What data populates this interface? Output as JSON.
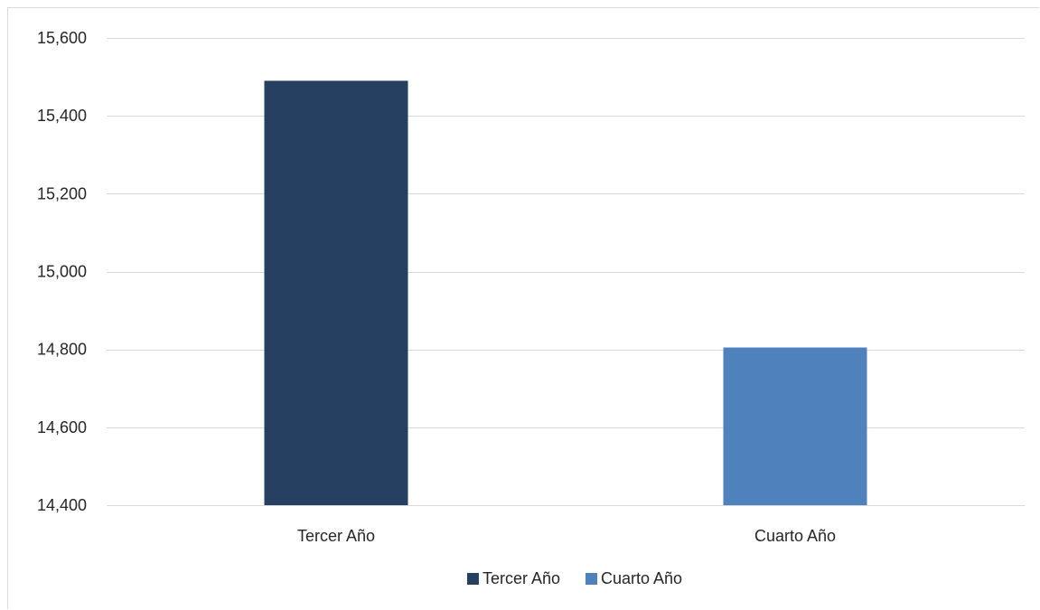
{
  "chart_data": {
    "type": "bar",
    "categories": [
      "Tercer Año",
      "Cuarto Año"
    ],
    "values": [
      15490,
      14805
    ],
    "bar_colors": [
      "#264061",
      "#4f81bd"
    ],
    "ylim": [
      14400,
      15600
    ],
    "yticks": [
      14400,
      14600,
      14800,
      15000,
      15200,
      15400,
      15600
    ],
    "ytick_labels": [
      "14,400",
      "14,600",
      "14,800",
      "15,000",
      "15,200",
      "15,400",
      "15,600"
    ],
    "grid": true,
    "legend": {
      "placement": "bottom",
      "entries": [
        {
          "label": "Tercer Año",
          "color": "#264061"
        },
        {
          "label": "Cuarto Año",
          "color": "#4f81bd"
        }
      ]
    },
    "title": "",
    "xlabel": "",
    "ylabel": ""
  }
}
